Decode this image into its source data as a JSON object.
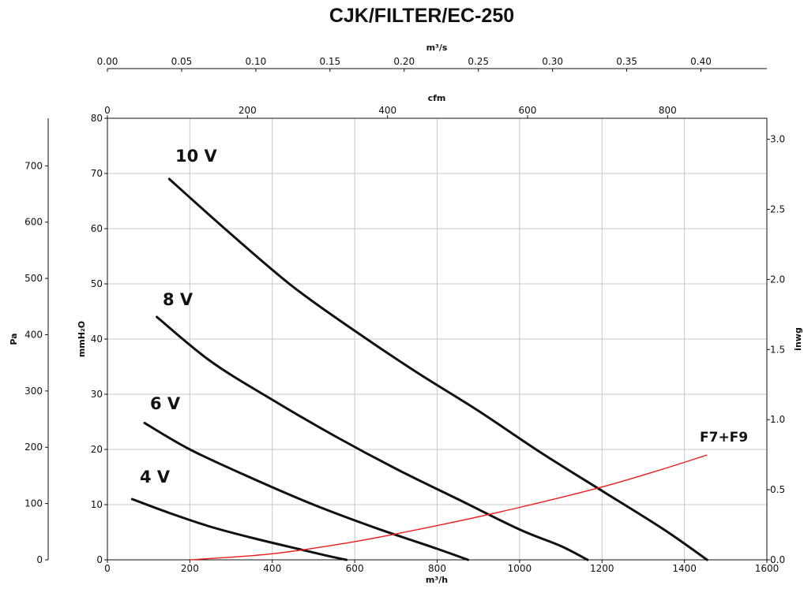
{
  "chart_data": {
    "type": "line",
    "title": "CJK/FILTER/EC-250",
    "grid": true,
    "axes": {
      "x_primary": {
        "label": "m³/h",
        "range": [
          0,
          1600
        ],
        "ticks": [
          "0",
          "200",
          "400",
          "600",
          "800",
          "1000",
          "1200",
          "1400",
          "1600"
        ]
      },
      "x_cfm": {
        "label": "cfm",
        "ticks": [
          "0",
          "200",
          "400",
          "600",
          "800"
        ]
      },
      "x_m3s": {
        "label": "m³/s",
        "ticks": [
          "0.00",
          "0.05",
          "0.10",
          "0.15",
          "0.20",
          "0.25",
          "0.30",
          "0.35",
          "0.40"
        ]
      },
      "y_primary": {
        "label": "mmH₂O",
        "range": [
          0,
          80
        ],
        "ticks": [
          "0",
          "10",
          "20",
          "30",
          "40",
          "50",
          "60",
          "70",
          "80"
        ]
      },
      "y_pa": {
        "label": "Pa",
        "ticks": [
          "0",
          "100",
          "200",
          "300",
          "400",
          "500",
          "600",
          "700"
        ]
      },
      "y_inwg": {
        "label": "inwg",
        "ticks": [
          "0.0",
          "0.5",
          "1.0",
          "1.5",
          "2.0",
          "2.5",
          "3.0"
        ]
      }
    },
    "series": [
      {
        "name": "10 V",
        "color": "#111111",
        "points": [
          [
            150,
            69
          ],
          [
            300,
            59
          ],
          [
            450,
            49.5
          ],
          [
            600,
            41.5
          ],
          [
            750,
            34
          ],
          [
            900,
            27
          ],
          [
            1050,
            19.5
          ],
          [
            1200,
            12.5
          ],
          [
            1350,
            5.5
          ],
          [
            1455,
            0
          ]
        ]
      },
      {
        "name": "8 V",
        "color": "#111111",
        "points": [
          [
            120,
            44
          ],
          [
            250,
            36
          ],
          [
            400,
            29
          ],
          [
            550,
            22.5
          ],
          [
            700,
            16.5
          ],
          [
            850,
            11
          ],
          [
            1000,
            5.5
          ],
          [
            1100,
            2.5
          ],
          [
            1165,
            0
          ]
        ]
      },
      {
        "name": "6 V",
        "color": "#111111",
        "points": [
          [
            90,
            24.8
          ],
          [
            200,
            20
          ],
          [
            350,
            14.8
          ],
          [
            500,
            10
          ],
          [
            650,
            5.8
          ],
          [
            800,
            2
          ],
          [
            875,
            0
          ]
        ]
      },
      {
        "name": "4 V",
        "color": "#111111",
        "points": [
          [
            60,
            11
          ],
          [
            150,
            8.5
          ],
          [
            250,
            6
          ],
          [
            350,
            4
          ],
          [
            450,
            2.2
          ],
          [
            530,
            0.8
          ],
          [
            580,
            0
          ]
        ]
      },
      {
        "name": "F7+F9",
        "color": "#ee1c1c",
        "points": [
          [
            200,
            0
          ],
          [
            400,
            1.1
          ],
          [
            600,
            3.3
          ],
          [
            800,
            6.2
          ],
          [
            1000,
            9.5
          ],
          [
            1200,
            13.2
          ],
          [
            1350,
            16.5
          ],
          [
            1455,
            19
          ]
        ]
      }
    ]
  }
}
